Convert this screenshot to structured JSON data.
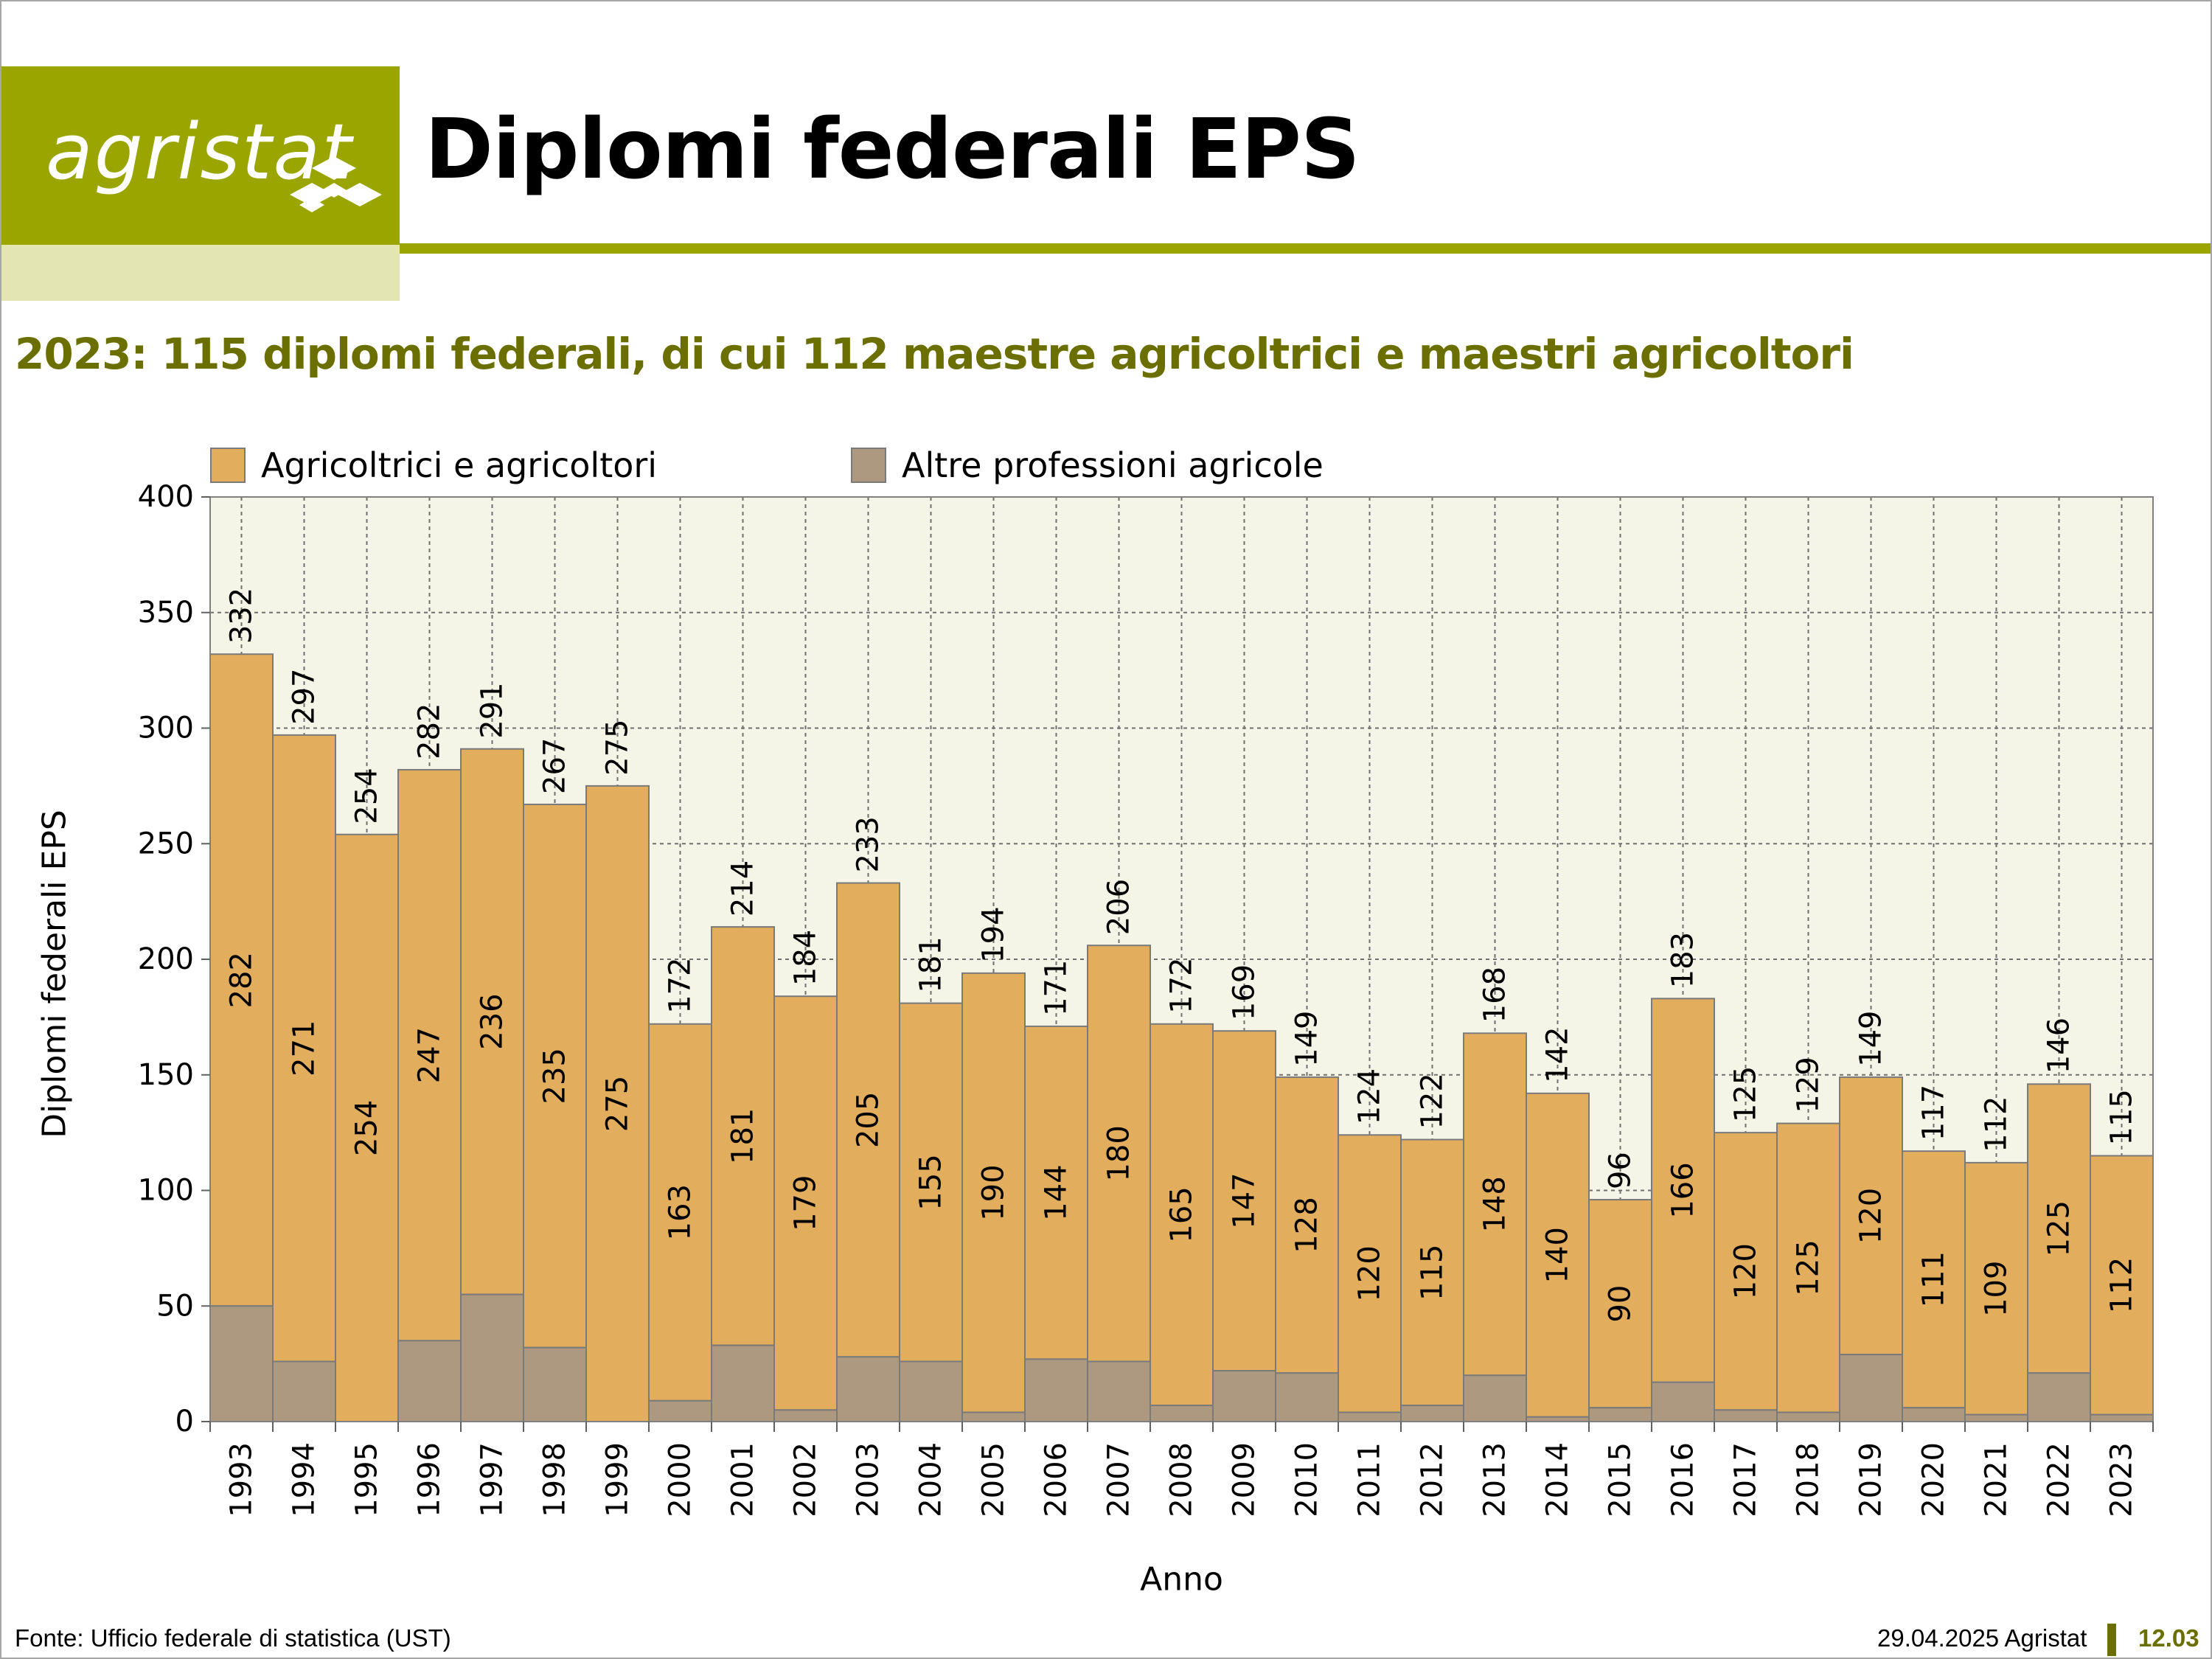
{
  "brand": {
    "logo_text": "agristat",
    "accent_color": "#9aa500",
    "accent_pale": "#e3e6b3",
    "text_olive": "#6b6f00"
  },
  "header": {
    "title": "Diplomi federali EPS"
  },
  "subtitle": "2023: 115 diplomi federali, di cui 112 maestre agricoltrici e maestri agricoltori",
  "footer": {
    "source": "Fonte: Ufficio federale di statistica (UST)",
    "date_brand": "29.04.2025 Agristat",
    "page_code": "12.03"
  },
  "chart_data": {
    "type": "bar",
    "stacked": true,
    "title": "",
    "xlabel": "Anno",
    "ylabel": "Diplomi federali EPS",
    "ylim": [
      0,
      400
    ],
    "yticks": [
      0,
      50,
      100,
      150,
      200,
      250,
      300,
      350,
      400
    ],
    "grid": true,
    "legend_position": "top",
    "background": "#f4f5e6",
    "categories": [
      "1993",
      "1994",
      "1995",
      "1996",
      "1997",
      "1998",
      "1999",
      "2000",
      "2001",
      "2002",
      "2003",
      "2004",
      "2005",
      "2006",
      "2007",
      "2008",
      "2009",
      "2010",
      "2011",
      "2012",
      "2013",
      "2014",
      "2015",
      "2016",
      "2017",
      "2018",
      "2019",
      "2020",
      "2021",
      "2022",
      "2023"
    ],
    "series": [
      {
        "name": "Altre professioni agricole",
        "color": "#ad9880",
        "values": [
          50,
          26,
          0,
          35,
          55,
          32,
          0,
          9,
          33,
          5,
          28,
          26,
          4,
          27,
          26,
          7,
          22,
          21,
          4,
          7,
          20,
          2,
          6,
          17,
          5,
          4,
          29,
          6,
          3,
          21,
          3
        ]
      },
      {
        "name": "Agricoltrici e agricoltori",
        "color": "#e2ad5c",
        "values": [
          282,
          271,
          254,
          247,
          236,
          235,
          275,
          163,
          181,
          179,
          205,
          155,
          190,
          144,
          180,
          165,
          147,
          128,
          120,
          115,
          148,
          140,
          90,
          166,
          120,
          125,
          120,
          111,
          109,
          125,
          112
        ]
      }
    ],
    "totals": [
      332,
      297,
      254,
      282,
      291,
      267,
      275,
      172,
      214,
      184,
      233,
      181,
      194,
      171,
      206,
      172,
      169,
      149,
      124,
      122,
      168,
      142,
      96,
      183,
      125,
      129,
      149,
      117,
      112,
      146,
      115
    ]
  }
}
